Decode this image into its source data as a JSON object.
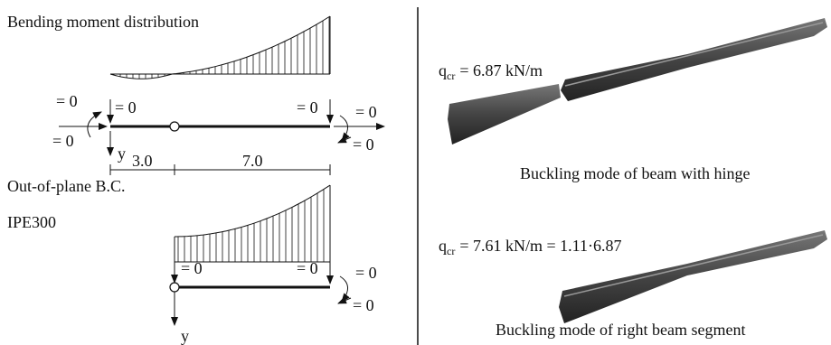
{
  "title": "Bending moment distribution",
  "in_plane_bc": {
    "labels": [
      "= 0",
      "= 0",
      "= 0",
      "= 0",
      "= 0",
      "= 0"
    ],
    "y_axis": "y"
  },
  "dimensions": [
    "3.0",
    "7.0"
  ],
  "out_of_plane_title": "Out-of-plane B.C.",
  "section": "IPE300",
  "out_of_plane_bc": {
    "labels": [
      "= 0",
      "= 0",
      "= 0",
      "= 0"
    ],
    "y_axis": "y"
  },
  "results": [
    {
      "symbol": "q",
      "subscript": "cr",
      "equation": "= 6.87 kN/m",
      "caption": "Buckling mode of beam with hinge"
    },
    {
      "symbol": "q",
      "subscript": "cr",
      "equation": "= 7.61 kN/m = 1.11·6.87",
      "caption": "Buckling mode of right beam segment"
    }
  ]
}
